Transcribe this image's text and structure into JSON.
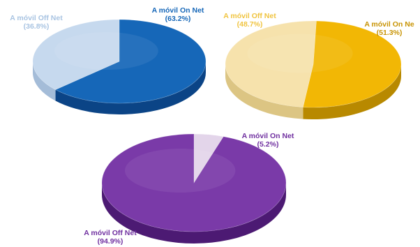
{
  "chart_data": [
    {
      "type": "pie",
      "style": "3d",
      "slices": [
        {
          "label": "A móvil On Net",
          "value": 63.2,
          "percent_text": "(63.2%)",
          "color": "#1667b8",
          "side_color": "#0b4486"
        },
        {
          "label": "A móvil Off Net",
          "value": 36.8,
          "percent_text": "(36.8%)",
          "color": "#c6d9ee",
          "side_color": "#a4bcd8",
          "label_color": "#a9c4e2"
        }
      ]
    },
    {
      "type": "pie",
      "style": "3d",
      "slices": [
        {
          "label": "A móvil On Ne",
          "value": 51.3,
          "percent_text": "(51.3%)",
          "color": "#f2b705",
          "side_color": "#b88900",
          "label_color": "#c89405"
        },
        {
          "label": "A móvil Off Net",
          "value": 48.7,
          "percent_text": "(48.7%)",
          "color": "#f6e2ac",
          "side_color": "#dcc583",
          "label_color": "#f0c440"
        }
      ]
    },
    {
      "type": "pie",
      "style": "3d",
      "slices": [
        {
          "label": "A móvil On Net",
          "value": 5.2,
          "percent_text": "(5.2%)",
          "color": "#e3d5ea",
          "side_color": "#c4b0d0",
          "label_color": "#7030a0"
        },
        {
          "label": "A móvil Off Net",
          "value": 94.9,
          "percent_text": "(94.9%)",
          "color": "#7a3aa8",
          "side_color": "#4c1a73",
          "label_color": "#7030a0"
        }
      ]
    }
  ]
}
